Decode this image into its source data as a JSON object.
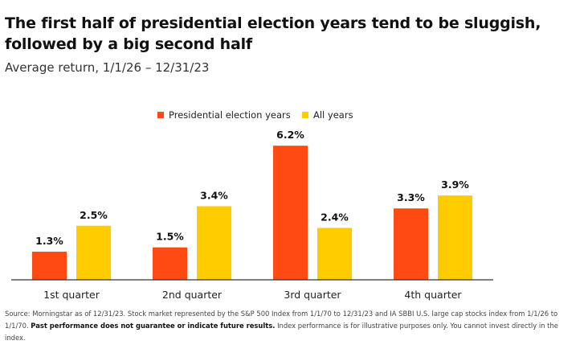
{
  "title": "The first half of presidential election years tend to be sluggish, followed by a big second half",
  "subtitle": "Average return, 1/1/26 – 12/31/23",
  "colors": {
    "series1": "#ff4a14",
    "series2": "#ffcc00",
    "axis": "#333333"
  },
  "chart_data": {
    "type": "bar",
    "title": "The first half of presidential election years tend to be sluggish, followed by a big second half",
    "subtitle": "Average return, 1/1/26 – 12/31/23",
    "categories": [
      "1st quarter",
      "2nd quarter",
      "3rd quarter",
      "4th quarter"
    ],
    "series": [
      {
        "name": "Presidential election years",
        "values": [
          1.3,
          1.5,
          6.2,
          3.3
        ],
        "labels": [
          "1.3%",
          "1.5%",
          "6.2%",
          "3.3%"
        ]
      },
      {
        "name": "All years",
        "values": [
          2.5,
          3.4,
          2.4,
          3.9
        ],
        "labels": [
          "2.5%",
          "3.4%",
          "2.4%",
          "3.9%"
        ]
      }
    ],
    "xlabel": "",
    "ylabel": "",
    "ylim": [
      0,
      7
    ],
    "grid": false,
    "legend": "top-center"
  },
  "footer": {
    "part1": "Source: Morningstar as of 12/31/23. Stock market represented by the S&P 500 Index from 1/1/70 to 12/31/23 and IA SBBI U.S. large cap stocks index from 1/1/26 to 1/1/70. ",
    "bold": "Past performance does not guarantee or indicate future results.",
    "part2": " Index performance is for illustrative purposes only. You cannot invest directly in the index."
  }
}
